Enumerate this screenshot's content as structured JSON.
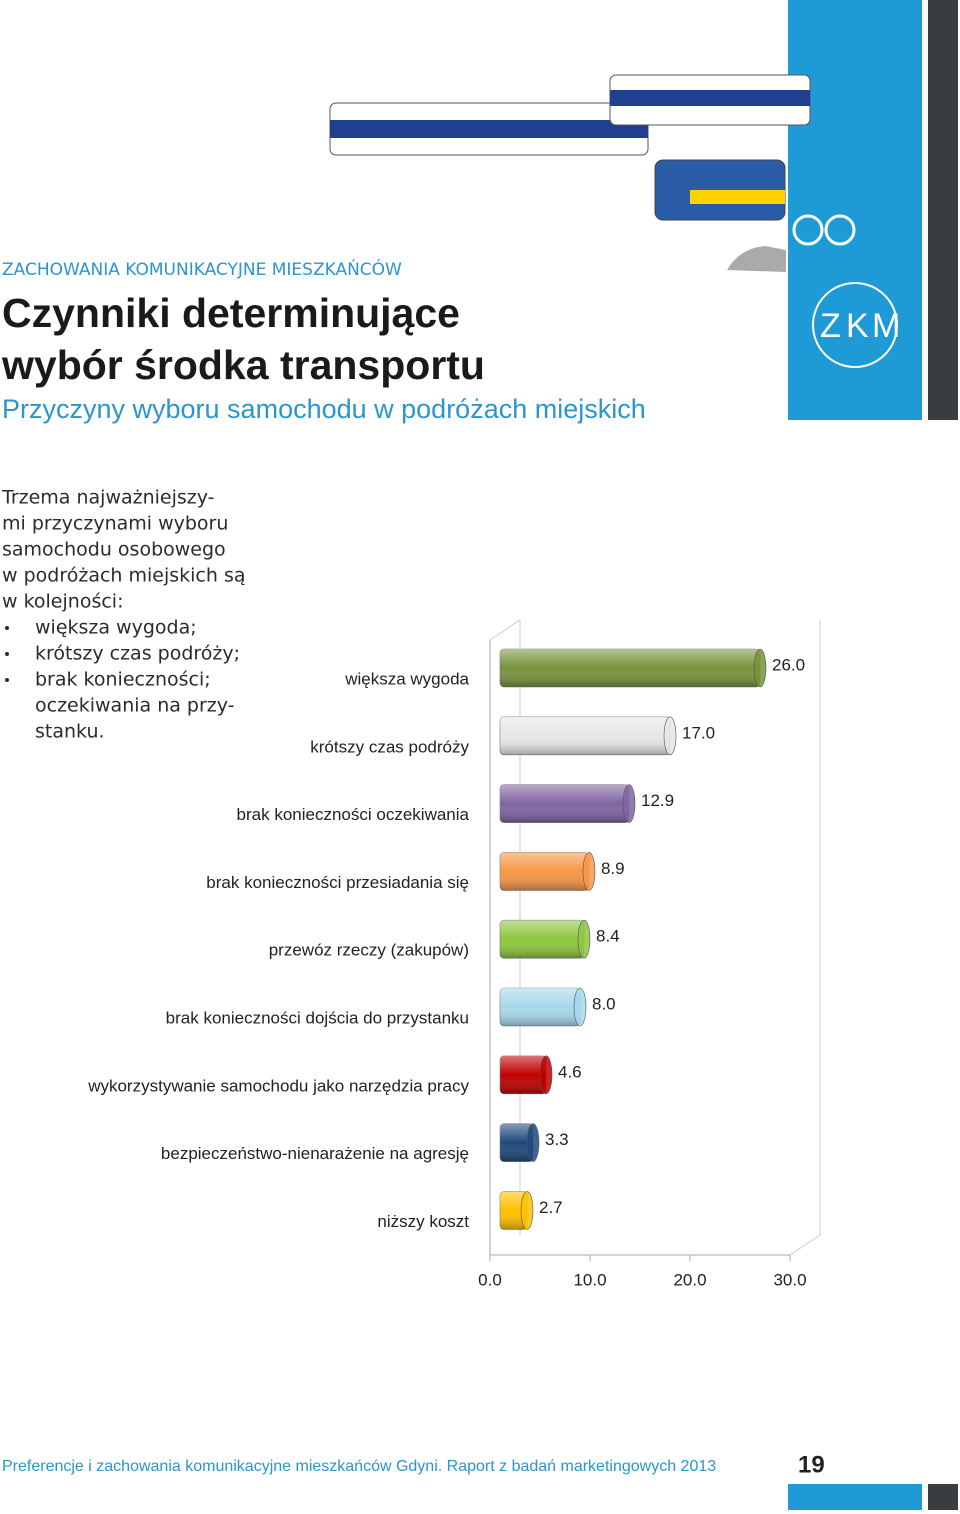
{
  "header": {
    "section": "ZACHOWANIA KOMUNIKACYJNE MIESZKAŃCÓW",
    "title_lines": [
      "Czynniki determinujące",
      "wybór środka transportu"
    ],
    "subtitle": "Przyczyny wyboru samochodu w podróżach miejskich",
    "logo": [
      "Z",
      "K",
      "M"
    ]
  },
  "intro": {
    "lines": [
      "Trzema najważniejszy-",
      "mi przyczynami wyboru",
      "samochodu osobowego",
      "w podróżach miejskich są",
      "w kolejności:"
    ],
    "bullets": [
      [
        "większa wygoda;"
      ],
      [
        "krótszy czas podróży;"
      ],
      [
        "brak konieczności;",
        "oczekiwania na przy-",
        "stanku."
      ]
    ]
  },
  "chart_data": {
    "type": "bar",
    "orientation": "horizontal",
    "categories": [
      "większa wygoda",
      "krótszy czas podróży",
      "brak konieczności oczekiwania",
      "brak konieczności przesiadania się",
      "przewóz rzeczy (zakupów)",
      "brak konieczności dojścia do przystanku",
      "wykorzystywanie samochodu jako narzędzia pracy",
      "bezpieczeństwo-nienarażenie na agresję",
      "niższy koszt"
    ],
    "values": [
      26.0,
      17.0,
      12.9,
      8.9,
      8.4,
      8.0,
      4.6,
      3.3,
      2.7
    ],
    "value_labels": [
      "26.0",
      "17.0",
      "12.9",
      "8.9",
      "8.4",
      "8.0",
      "4.6",
      "3.3",
      "2.7"
    ],
    "colors": [
      "#77933c",
      "#e6e6e6",
      "#8064a2",
      "#f79646",
      "#8dc63f",
      "#a6d8ea",
      "#c00000",
      "#1f497d",
      "#ffc000"
    ],
    "xlim": [
      0,
      30
    ],
    "xticks": [
      {
        "value": 0,
        "label": "0.0"
      },
      {
        "value": 10,
        "label": "10.0"
      },
      {
        "value": 20,
        "label": "20.0"
      },
      {
        "value": 30,
        "label": "30.0"
      }
    ]
  },
  "footer": {
    "text": "Preferencje i zachowania komunikacyjne mieszkańców Gdyni. Raport z badań marketingowych 2013",
    "page": "19"
  }
}
